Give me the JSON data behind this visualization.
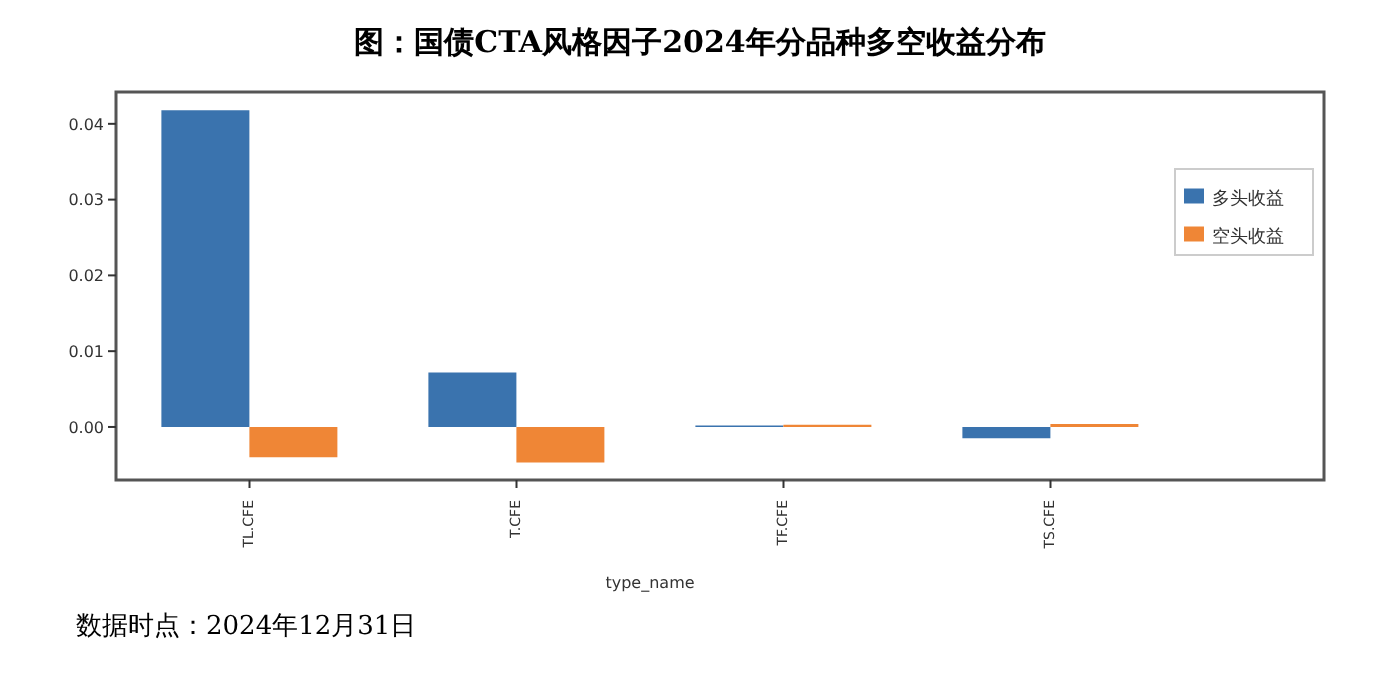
{
  "chart_data": {
    "type": "bar",
    "title": "图：国债CTA风格因子2024年分品种多空收益分布",
    "xlabel": "type_name",
    "categories": [
      "TL.CFE",
      "T.CFE",
      "TF.CFE",
      "TS.CFE"
    ],
    "series": [
      {
        "name": "多头收益",
        "color": "#3a73ae",
        "values": [
          0.0418,
          0.0072,
          0.0002,
          -0.0015
        ]
      },
      {
        "name": "空头收益",
        "color": "#ef8636",
        "values": [
          -0.004,
          -0.0047,
          0.0003,
          0.0004
        ]
      }
    ],
    "ylim": [
      -0.007,
      0.0442
    ],
    "yticks": [
      {
        "value": 0,
        "label": "0.00"
      },
      {
        "value": 0.01,
        "label": "0.01"
      },
      {
        "value": 0.02,
        "label": "0.02"
      },
      {
        "value": 0.03,
        "label": "0.03"
      },
      {
        "value": 0.04,
        "label": "0.04"
      }
    ],
    "grid": false,
    "legend": "top right",
    "annotations": [
      "数据时点：2024年12月31日"
    ]
  }
}
